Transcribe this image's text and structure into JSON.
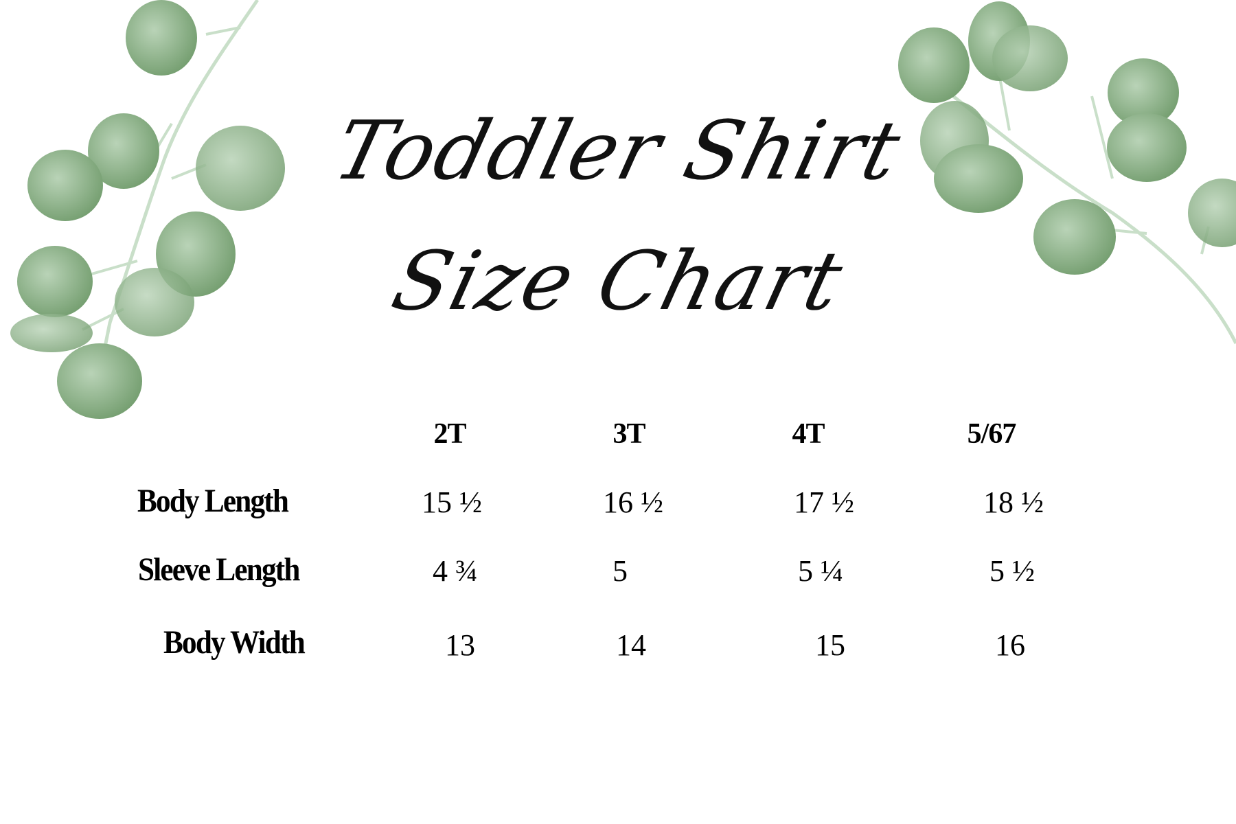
{
  "title": {
    "line1": "Toddler Shirt",
    "line2": "Size Chart"
  },
  "colors": {
    "leaf_dark": "#6f9a6a",
    "leaf_light": "#b9d3b7",
    "stem": "#c9dfc9",
    "text": "#000000"
  },
  "chart_data": {
    "type": "table",
    "columns": [
      "2T",
      "3T",
      "4T",
      "5/67"
    ],
    "rows": [
      {
        "label": "Body Length",
        "values": [
          "15 ½",
          "16 ½",
          "17 ½",
          "18 ½"
        ]
      },
      {
        "label": "Sleeve Length",
        "values": [
          "4 ¾",
          "5",
          "5 ¼",
          "5 ½"
        ]
      },
      {
        "label": "Body Width",
        "values": [
          "13",
          "14",
          "15",
          "16"
        ]
      }
    ]
  }
}
